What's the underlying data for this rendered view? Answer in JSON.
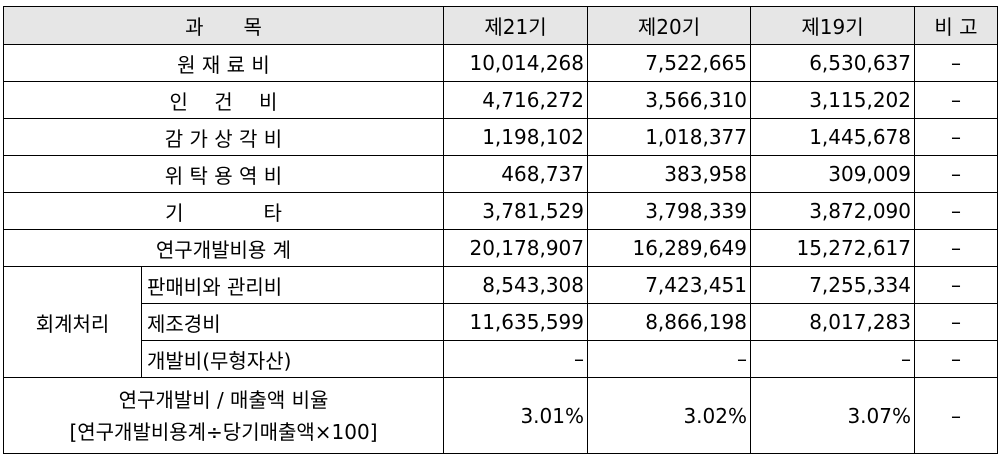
{
  "header": {
    "item": "과　　목",
    "col21": "제21기",
    "col20": "제20기",
    "col19": "제19기",
    "remarks": "비 고"
  },
  "rows": [
    {
      "label": "원 재 료 비",
      "v21": "10,014,268",
      "v20": "7,522,665",
      "v19": "6,530,637",
      "rem": "–"
    },
    {
      "label": "인　 건　 비",
      "v21": "4,716,272",
      "v20": "3,566,310",
      "v19": "3,115,202",
      "rem": "–"
    },
    {
      "label": "감 가 상 각 비",
      "v21": "1,198,102",
      "v20": "1,018,377",
      "v19": "1,445,678",
      "rem": "–"
    },
    {
      "label": "위 탁 용 역 비",
      "v21": "468,737",
      "v20": "383,958",
      "v19": "309,009",
      "rem": "–"
    },
    {
      "label": "기　　　　타",
      "v21": "3,781,529",
      "v20": "3,798,339",
      "v19": "3,872,090",
      "rem": "–"
    },
    {
      "label": "연구개발비용 계",
      "v21": "20,178,907",
      "v20": "16,289,649",
      "v19": "15,272,617",
      "rem": "–"
    }
  ],
  "accounting": {
    "group_label": "회계처리",
    "rows": [
      {
        "label": "판매비와 관리비",
        "v21": "8,543,308",
        "v20": "7,423,451",
        "v19": "7,255,334",
        "rem": "–"
      },
      {
        "label": "제조경비",
        "v21": "11,635,599",
        "v20": "8,866,198",
        "v19": "8,017,283",
        "rem": "–"
      },
      {
        "label": "개발비(무형자산)",
        "v21": "–",
        "v20": "–",
        "v19": "–",
        "rem": "–"
      }
    ]
  },
  "ratio": {
    "line1": "연구개발비 / 매출액 비율",
    "line2": "[연구개발비용계÷당기매출액×100]",
    "v21": "3.01%",
    "v20": "3.02%",
    "v19": "3.07%",
    "rem": "–"
  }
}
